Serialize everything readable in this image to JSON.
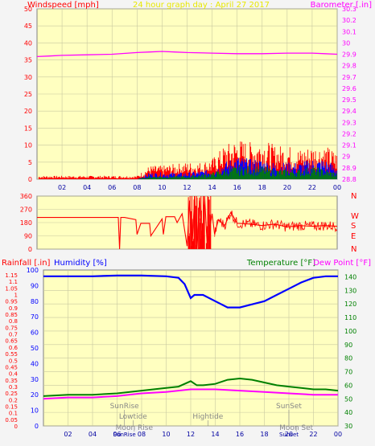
{
  "colors": {
    "background": "#f4f4f4",
    "plot_bg": "#ffffc0",
    "grid": "#c8c8a0",
    "wind_avg": "#ff0000",
    "wind_mid": "#0000ff",
    "wind_low": "#008000",
    "barometer": "#ff00ff",
    "direction": "#ff0000",
    "humidity": "#0000ff",
    "temperature": "#008000",
    "dewpoint": "#ff00ff",
    "rainfall": "#ff0000",
    "title": "#e8e800",
    "annotation": "#888888"
  },
  "chart_data": [
    {
      "name": "wind-barometer",
      "type": "line",
      "title": "24 hour graph day : April 27 2017",
      "left_label": "Windspeed [mph]",
      "right_label": "Barometer [.in]",
      "x_ticks": [
        "02",
        "04",
        "06",
        "08",
        "10",
        "12",
        "14",
        "16",
        "18",
        "20",
        "22",
        "00"
      ],
      "xlim": [
        0,
        24
      ],
      "ylim_left": [
        0,
        50
      ],
      "y_ticks_left": [
        "0",
        "5",
        "10",
        "15",
        "20",
        "25",
        "30",
        "35",
        "40",
        "45",
        "50"
      ],
      "ylim_right": [
        28.8,
        30.3
      ],
      "y_ticks_right": [
        "28.8",
        "28.9",
        "29",
        "29.1",
        "29.2",
        "29.3",
        "29.4",
        "29.5",
        "29.6",
        "29.7",
        "29.8",
        "29.9",
        "30",
        "30.1",
        "30.2",
        "30.3"
      ],
      "barometer": {
        "x": [
          0,
          1,
          2,
          4,
          6,
          8,
          9,
          10,
          11,
          12,
          14,
          16,
          18,
          20,
          22,
          23,
          24
        ],
        "y": [
          29.88,
          29.885,
          29.89,
          29.895,
          29.9,
          29.915,
          29.92,
          29.925,
          29.92,
          29.915,
          29.91,
          29.905,
          29.905,
          29.91,
          29.91,
          29.905,
          29.9
        ]
      },
      "wind_red_envelope": {
        "x": [
          0,
          2,
          4,
          6,
          8,
          9,
          10,
          12,
          13,
          14,
          15,
          16,
          17,
          18,
          19,
          20,
          21,
          22,
          23,
          24
        ],
        "y": [
          1,
          1,
          1,
          1,
          1,
          4,
          4,
          5,
          5,
          6,
          10,
          12,
          11,
          12,
          10,
          10,
          9,
          10,
          10,
          8
        ]
      },
      "wind_blue_envelope": {
        "x": [
          8,
          9,
          10,
          12,
          14,
          15,
          16,
          17,
          18,
          19,
          20,
          21,
          22,
          23,
          24
        ],
        "y": [
          0,
          2,
          2,
          2,
          3,
          5,
          7,
          6,
          6,
          5,
          5,
          5,
          6,
          6,
          4
        ]
      },
      "wind_green_envelope": {
        "x": [
          8,
          9,
          10,
          12,
          14,
          15,
          16,
          17,
          18,
          19,
          20,
          21,
          22,
          23,
          24
        ],
        "y": [
          0,
          1,
          1,
          1,
          2,
          3,
          4,
          4,
          4,
          3,
          3,
          3,
          4,
          3,
          2
        ]
      }
    },
    {
      "name": "wind-direction",
      "type": "line",
      "y_ticks": [
        "0",
        "90",
        "180",
        "270",
        "360"
      ],
      "ylim": [
        0,
        360
      ],
      "compass_labels": [
        "N",
        "W",
        "S",
        "E",
        "N"
      ],
      "x": [
        0,
        6.5,
        6.6,
        6.7,
        7,
        7.9,
        8,
        8.3,
        9,
        9.1,
        10,
        10.1,
        10.3,
        11,
        11.2,
        11.6,
        12,
        12.2,
        12.4,
        12.6,
        12.8,
        13,
        13.2,
        13.4,
        13.6,
        14,
        14.2,
        14.5,
        15,
        15.5,
        16,
        17,
        18,
        19,
        20,
        21,
        22,
        23,
        24
      ],
      "y": [
        215,
        215,
        0,
        215,
        215,
        200,
        100,
        175,
        175,
        90,
        205,
        100,
        220,
        220,
        180,
        240,
        20,
        330,
        10,
        360,
        0,
        350,
        20,
        360,
        30,
        240,
        100,
        200,
        160,
        250,
        175,
        170,
        160,
        170,
        150,
        160,
        155,
        160,
        155
      ]
    },
    {
      "name": "humidity-temperature",
      "type": "line",
      "rain_label": "Rainfall [.in]",
      "humidity_label": "Humidity [%]",
      "temp_label": "Temperature [°F]",
      "dew_label": "Dew Point [°F]",
      "x_ticks": [
        "02",
        "04",
        "06",
        "08",
        "10",
        "12",
        "14",
        "16",
        "18",
        "20",
        "22",
        "00"
      ],
      "xlim": [
        0,
        24
      ],
      "y_ticks_left_rain": [
        "0",
        "0.05",
        "0.1",
        "0.15",
        "0.2",
        "0.25",
        "0.3",
        "0.35",
        "0.4",
        "0.45",
        "0.5",
        "0.55",
        "0.6",
        "0.65",
        "0.7",
        "0.75",
        "0.8",
        "0.85",
        "0.9",
        "0.95",
        "1",
        "1.05",
        "1.1",
        "1.15"
      ],
      "y_ticks_left_hum": [
        "0",
        "10",
        "20",
        "30",
        "40",
        "50",
        "60",
        "70",
        "80",
        "90",
        "100"
      ],
      "ylim_humidity": [
        0,
        100
      ],
      "y_ticks_right": [
        "30",
        "40",
        "50",
        "60",
        "70",
        "80",
        "90",
        "100",
        "110",
        "120",
        "130",
        "140"
      ],
      "ylim_temp": [
        30,
        145
      ],
      "humidity": {
        "x": [
          0,
          2,
          4,
          6,
          8,
          10,
          11,
          11.5,
          12,
          12.3,
          13,
          14,
          15,
          16,
          17,
          18,
          19,
          20,
          21,
          22,
          23,
          24
        ],
        "y": [
          96,
          96,
          96,
          96.5,
          96.5,
          96,
          95,
          91,
          82,
          84,
          84,
          80,
          76,
          76,
          78,
          80,
          84,
          88,
          92,
          95,
          96,
          96
        ]
      },
      "temperature": {
        "x": [
          0,
          2,
          4,
          6,
          8,
          10,
          11,
          12,
          12.5,
          13,
          14,
          15,
          16,
          17,
          18,
          19,
          20,
          21,
          22,
          23,
          24
        ],
        "y": [
          52,
          53,
          53,
          54,
          56,
          58,
          59,
          63,
          60,
          60,
          61,
          64,
          65,
          64,
          62,
          60,
          59,
          58,
          57,
          57,
          56
        ]
      },
      "dewpoint": {
        "x": [
          0,
          2,
          4,
          6,
          8,
          10,
          12,
          14,
          16,
          18,
          20,
          22,
          24
        ],
        "y": [
          50,
          51,
          51,
          52,
          54,
          55,
          57,
          57,
          56,
          55,
          54,
          53,
          53
        ]
      },
      "annotations": [
        {
          "label": "SunRise",
          "x": 6.6,
          "row": 1
        },
        {
          "label": "Lowtide",
          "x": 7.3,
          "row": 2
        },
        {
          "label": "Moon Rise",
          "x": 7.4,
          "row": 3
        },
        {
          "label": "Hightide",
          "x": 13.4,
          "row": 2
        },
        {
          "label": "SunSet",
          "x": 20.0,
          "row": 1
        },
        {
          "label": "Moon Set",
          "x": 20.6,
          "row": 3
        }
      ],
      "bottom_row_labels": [
        {
          "label": "SunRise",
          "x": 6.6
        },
        {
          "label": "Sunset",
          "x": 20.0
        }
      ]
    }
  ]
}
